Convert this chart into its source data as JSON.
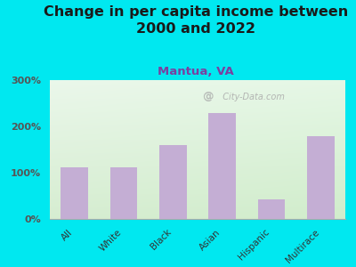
{
  "title": "Change in per capita income between\n2000 and 2022",
  "subtitle": "Mantua, VA",
  "categories": [
    "All",
    "White",
    "Black",
    "Asian",
    "Hispanic",
    "Multirace"
  ],
  "values": [
    112,
    112,
    160,
    228,
    42,
    178
  ],
  "bar_color": "#c4aed4",
  "title_fontsize": 11.5,
  "subtitle_fontsize": 9.5,
  "subtitle_color": "#7b3fa0",
  "ytick_color": "#555555",
  "background_outer": "#00e8f0",
  "ylim": [
    0,
    300
  ],
  "yticks": [
    0,
    100,
    200,
    300
  ],
  "ytick_labels": [
    "0%",
    "100%",
    "200%",
    "300%"
  ],
  "watermark": "  City-Data.com"
}
